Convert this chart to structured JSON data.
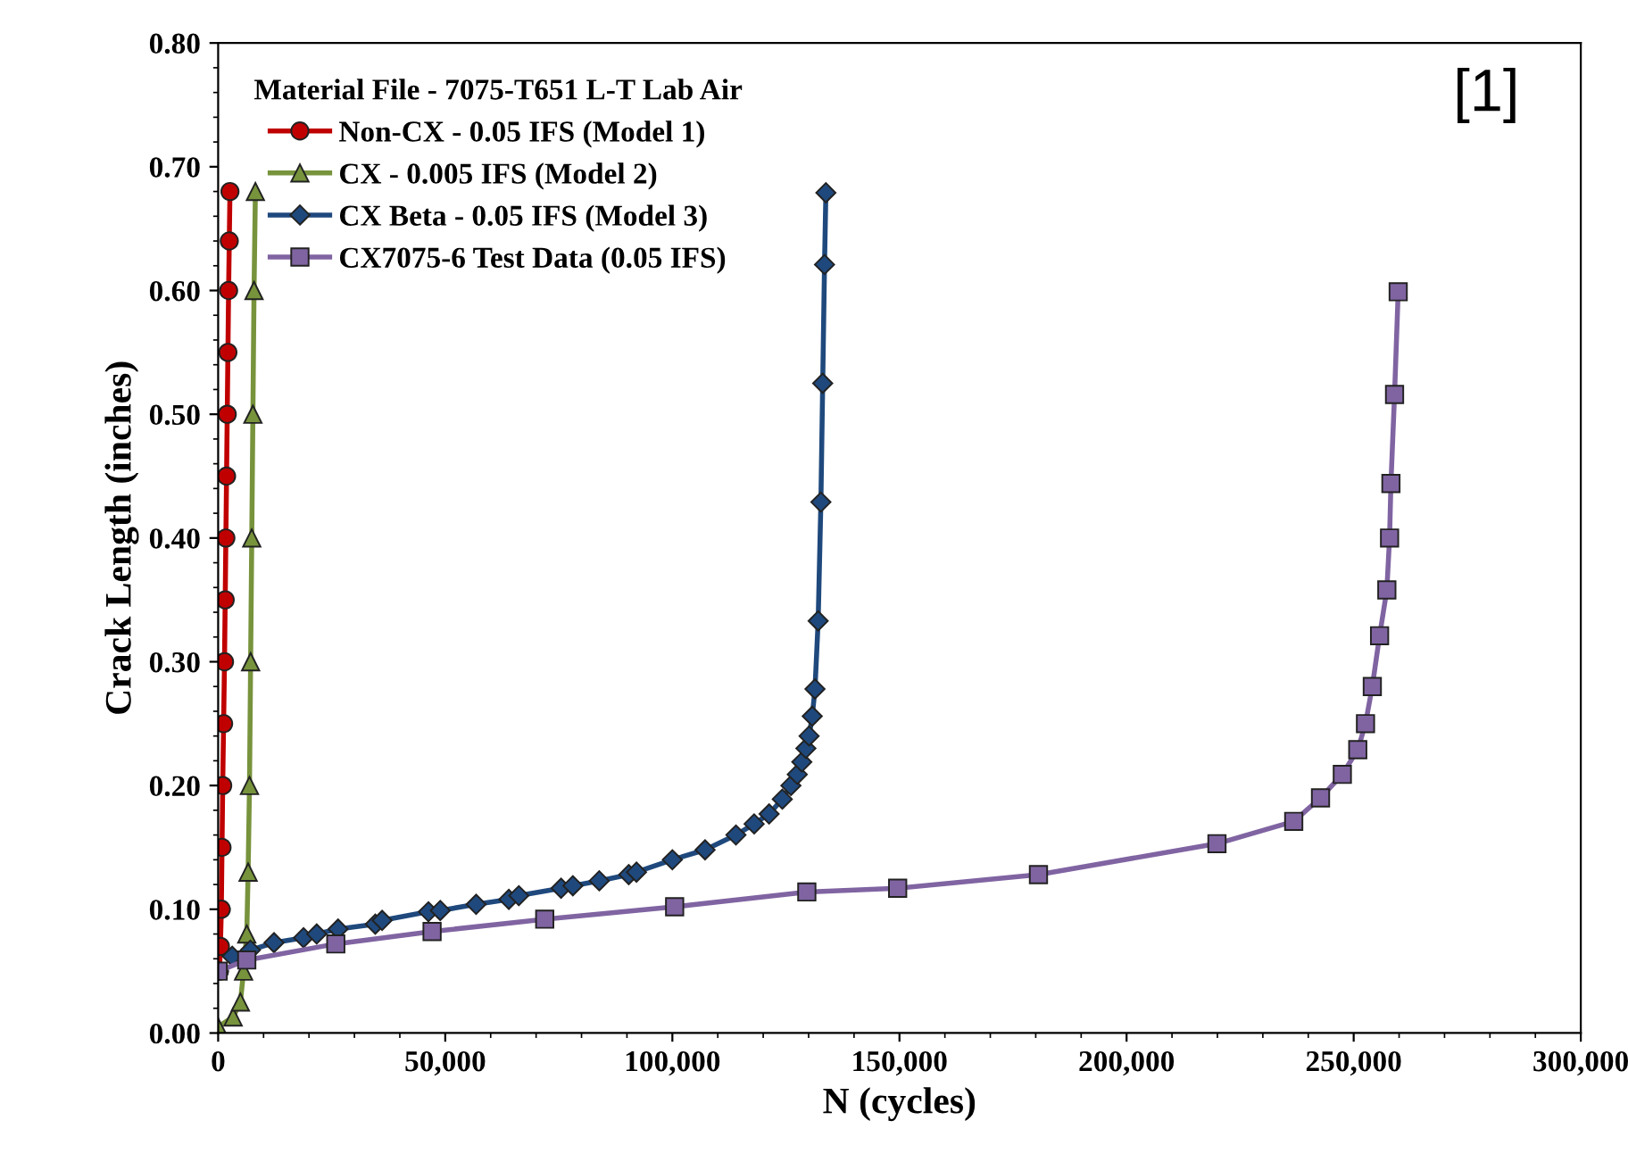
{
  "chart_data": {
    "type": "line",
    "xlabel": "N (cycles)",
    "ylabel": "Crack Length (inches)",
    "legend_title": "Material File - 7075-T651 L-T Lab Air",
    "legend": "top left",
    "grid": false,
    "xlim": [
      0,
      300000
    ],
    "xticks": [
      {
        "value": 0,
        "label": "0"
      },
      {
        "value": 50000,
        "label": "50,000"
      },
      {
        "value": 100000,
        "label": "100,000"
      },
      {
        "value": 150000,
        "label": "150,000"
      },
      {
        "value": 200000,
        "label": "200,000"
      },
      {
        "value": 250000,
        "label": "250,000"
      },
      {
        "value": 300000,
        "label": "300,000"
      }
    ],
    "ylim": [
      0,
      0.8
    ],
    "yticks": [
      {
        "value": 0,
        "label": "0.00"
      },
      {
        "value": 0.1,
        "label": "0.10"
      },
      {
        "value": 0.2,
        "label": "0.20"
      },
      {
        "value": 0.3,
        "label": "0.30"
      },
      {
        "value": 0.4,
        "label": "0.40"
      },
      {
        "value": 0.5,
        "label": "0.50"
      },
      {
        "value": 0.6,
        "label": "0.60"
      },
      {
        "value": 0.7,
        "label": "0.70"
      },
      {
        "value": 0.8,
        "label": "0.80"
      }
    ],
    "annotations": [
      "[1]"
    ],
    "series": [
      {
        "name": "Non-CX - 0.05 IFS (Model 1)",
        "color": "#c00000",
        "marker": "circle",
        "x": [
          300,
          500,
          700,
          850,
          1000,
          1200,
          1400,
          1550,
          1700,
          1850,
          2000,
          2150,
          2300,
          2450,
          2600
        ],
        "values": [
          0.05,
          0.07,
          0.1,
          0.15,
          0.2,
          0.25,
          0.3,
          0.35,
          0.4,
          0.45,
          0.5,
          0.55,
          0.6,
          0.64,
          0.68
        ]
      },
      {
        "name": "CX - 0.005 IFS (Model 2)",
        "color": "#77933c",
        "marker": "triangle",
        "x": [
          0,
          3300,
          4900,
          5600,
          6300,
          6600,
          6900,
          7150,
          7400,
          7650,
          7900,
          8200
        ],
        "values": [
          0.005,
          0.013,
          0.025,
          0.05,
          0.08,
          0.13,
          0.2,
          0.3,
          0.4,
          0.5,
          0.6,
          0.68
        ]
      },
      {
        "name": "CX Beta - 0.05 IFS (Model 3)",
        "color": "#1f497d",
        "marker": "diamond",
        "x": [
          3100,
          7100,
          12300,
          18800,
          21700,
          26400,
          34600,
          36100,
          46300,
          48900,
          56800,
          64000,
          66200,
          75500,
          78100,
          83900,
          90400,
          92100,
          100000,
          107200,
          114000,
          118000,
          121300,
          124200,
          126100,
          127500,
          128500,
          129400,
          130100,
          130800,
          131400,
          132100,
          132700,
          133100,
          133500,
          133800
        ],
        "values": [
          0.062,
          0.067,
          0.073,
          0.077,
          0.08,
          0.084,
          0.088,
          0.091,
          0.098,
          0.099,
          0.104,
          0.108,
          0.111,
          0.117,
          0.119,
          0.123,
          0.128,
          0.13,
          0.14,
          0.148,
          0.16,
          0.169,
          0.177,
          0.189,
          0.2,
          0.209,
          0.219,
          0.23,
          0.24,
          0.256,
          0.278,
          0.333,
          0.429,
          0.525,
          0.621,
          0.679
        ]
      },
      {
        "name": "CX7075-6 Test Data (0.05 IFS)",
        "color": "#8064a2",
        "marker": "square",
        "x": [
          0,
          6300,
          25900,
          47100,
          71900,
          100500,
          129600,
          149600,
          180600,
          219900,
          236800,
          242700,
          247500,
          250900,
          252600,
          254100,
          255700,
          257300,
          257900,
          258200,
          259000,
          259800
        ],
        "values": [
          0.05,
          0.059,
          0.072,
          0.082,
          0.092,
          0.102,
          0.114,
          0.117,
          0.128,
          0.153,
          0.171,
          0.19,
          0.209,
          0.229,
          0.25,
          0.28,
          0.321,
          0.358,
          0.4,
          0.444,
          0.516,
          0.599
        ]
      }
    ]
  }
}
